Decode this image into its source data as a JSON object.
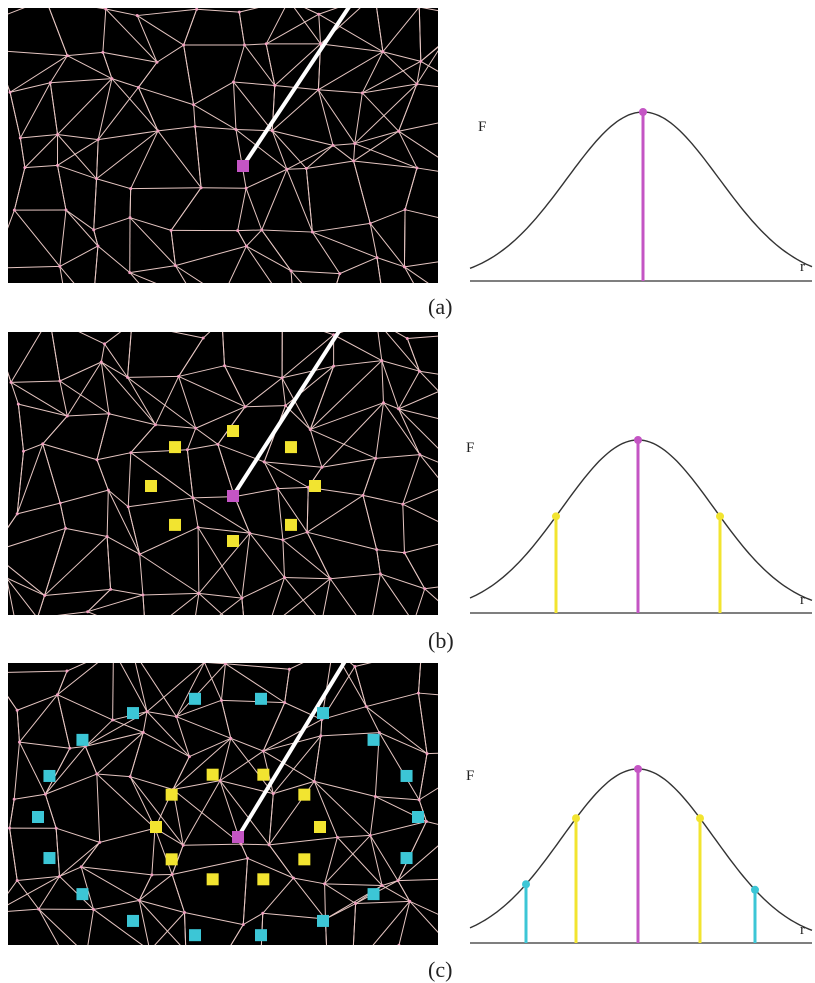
{
  "panels": [
    {
      "label": "(a)",
      "y_axis": "F",
      "x_axis": "r"
    },
    {
      "label": "(b)",
      "y_axis": "F",
      "x_axis": "r"
    },
    {
      "label": "(c)",
      "y_axis": "F",
      "x_axis": "r"
    }
  ]
}
